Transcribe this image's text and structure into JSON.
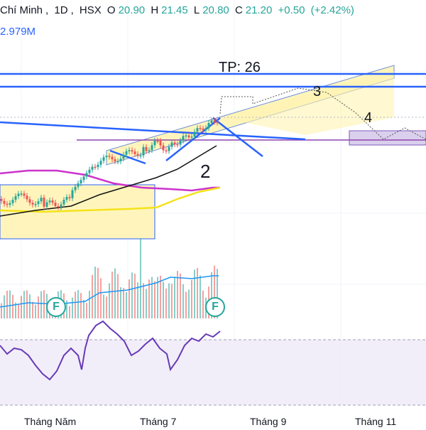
{
  "header": {
    "symbol_fragment": "Chí Minh",
    "interval": "1D",
    "exchange": "HSX",
    "open_label": "O",
    "open": "20.90",
    "high_label": "H",
    "high": "21.45",
    "low_label": "L",
    "low": "20.80",
    "close_label": "C",
    "close": "21.20",
    "change": "+0.50",
    "change_pct": "(+2.42%)"
  },
  "volume_legend": "2.979M",
  "annotations": {
    "tp_label": "TP: 26",
    "wave_2": "2",
    "wave_3": "3",
    "wave_4": "4",
    "flag_1": "F",
    "flag_2": "F"
  },
  "colors": {
    "up": "#26a69a",
    "down": "#ef5350",
    "trendline": "#2962ff",
    "channel_fill": "#fff3b0",
    "ma_magenta": "#cc33cc",
    "ma_yellow": "#f5e21a",
    "ma_black": "#111111",
    "rsi_line": "#673ab7",
    "rsi_band": "#ede7f6",
    "volume_ma": "#2196f3"
  },
  "chart_data": {
    "type": "candlestick",
    "x_ticks": [
      "Tháng Năm",
      "Tháng 7",
      "Tháng 9",
      "Tháng 11"
    ],
    "target_price": 26,
    "last_bar": {
      "open": 20.9,
      "high": 21.45,
      "low": 20.8,
      "close": 21.2,
      "change": 0.5,
      "change_pct": 2.42
    },
    "last_volume": "2.979M",
    "wave_labels": [
      "2",
      "3",
      "4"
    ],
    "panels": [
      "price",
      "volume",
      "rsi"
    ],
    "grid": true
  }
}
